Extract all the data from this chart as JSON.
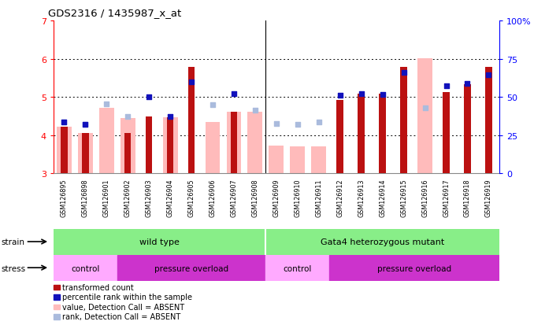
{
  "title": "GDS2316 / 1435987_x_at",
  "samples": [
    "GSM126895",
    "GSM126898",
    "GSM126901",
    "GSM126902",
    "GSM126903",
    "GSM126904",
    "GSM126905",
    "GSM126906",
    "GSM126907",
    "GSM126908",
    "GSM126909",
    "GSM126910",
    "GSM126911",
    "GSM126912",
    "GSM126913",
    "GSM126914",
    "GSM126915",
    "GSM126916",
    "GSM126917",
    "GSM126918",
    "GSM126919"
  ],
  "y_min": 3.0,
  "y_max": 7.0,
  "y_ticks": [
    3,
    4,
    5,
    6,
    7
  ],
  "y2_ticks": [
    0,
    25,
    50,
    75,
    100
  ],
  "red_bar_top": [
    4.22,
    4.05,
    null,
    4.05,
    4.48,
    4.46,
    5.78,
    null,
    4.62,
    null,
    null,
    null,
    null,
    4.92,
    5.09,
    5.09,
    5.79,
    null,
    5.12,
    5.33,
    5.78
  ],
  "pink_bar_top": [
    4.22,
    4.05,
    4.72,
    4.45,
    null,
    4.46,
    null,
    4.35,
    4.62,
    4.62,
    3.72,
    3.7,
    3.7,
    null,
    null,
    null,
    null,
    6.02,
    null,
    null,
    null
  ],
  "blue_sq_y": [
    4.35,
    4.28,
    null,
    null,
    5.0,
    4.48,
    5.4,
    null,
    5.08,
    null,
    null,
    null,
    null,
    5.05,
    5.08,
    5.06,
    5.65,
    null,
    5.3,
    5.35,
    5.58
  ],
  "light_blue_sq_y": [
    4.35,
    4.28,
    4.82,
    4.48,
    null,
    null,
    null,
    4.8,
    null,
    4.65,
    4.3,
    4.28,
    4.35,
    null,
    null,
    null,
    null,
    4.72,
    null,
    null,
    null
  ],
  "red_bar_color": "#BB1111",
  "pink_bar_color": "#FFBBBB",
  "blue_sq_color": "#1111BB",
  "light_blue_sq_color": "#AABBDD",
  "bw_pink": 0.7,
  "bw_red": 0.32,
  "sq_size": 22,
  "strain_wt_color": "#88EE88",
  "strain_mut_color": "#88EE88",
  "stress_ctrl_color": "#FFAAFF",
  "stress_pres_color": "#CC33CC",
  "gray_band_color": "#CCCCCC",
  "legend_labels": [
    "transformed count",
    "percentile rank within the sample",
    "value, Detection Call = ABSENT",
    "rank, Detection Call = ABSENT"
  ],
  "legend_colors": [
    "#BB1111",
    "#1111BB",
    "#FFBBBB",
    "#AABBDD"
  ]
}
